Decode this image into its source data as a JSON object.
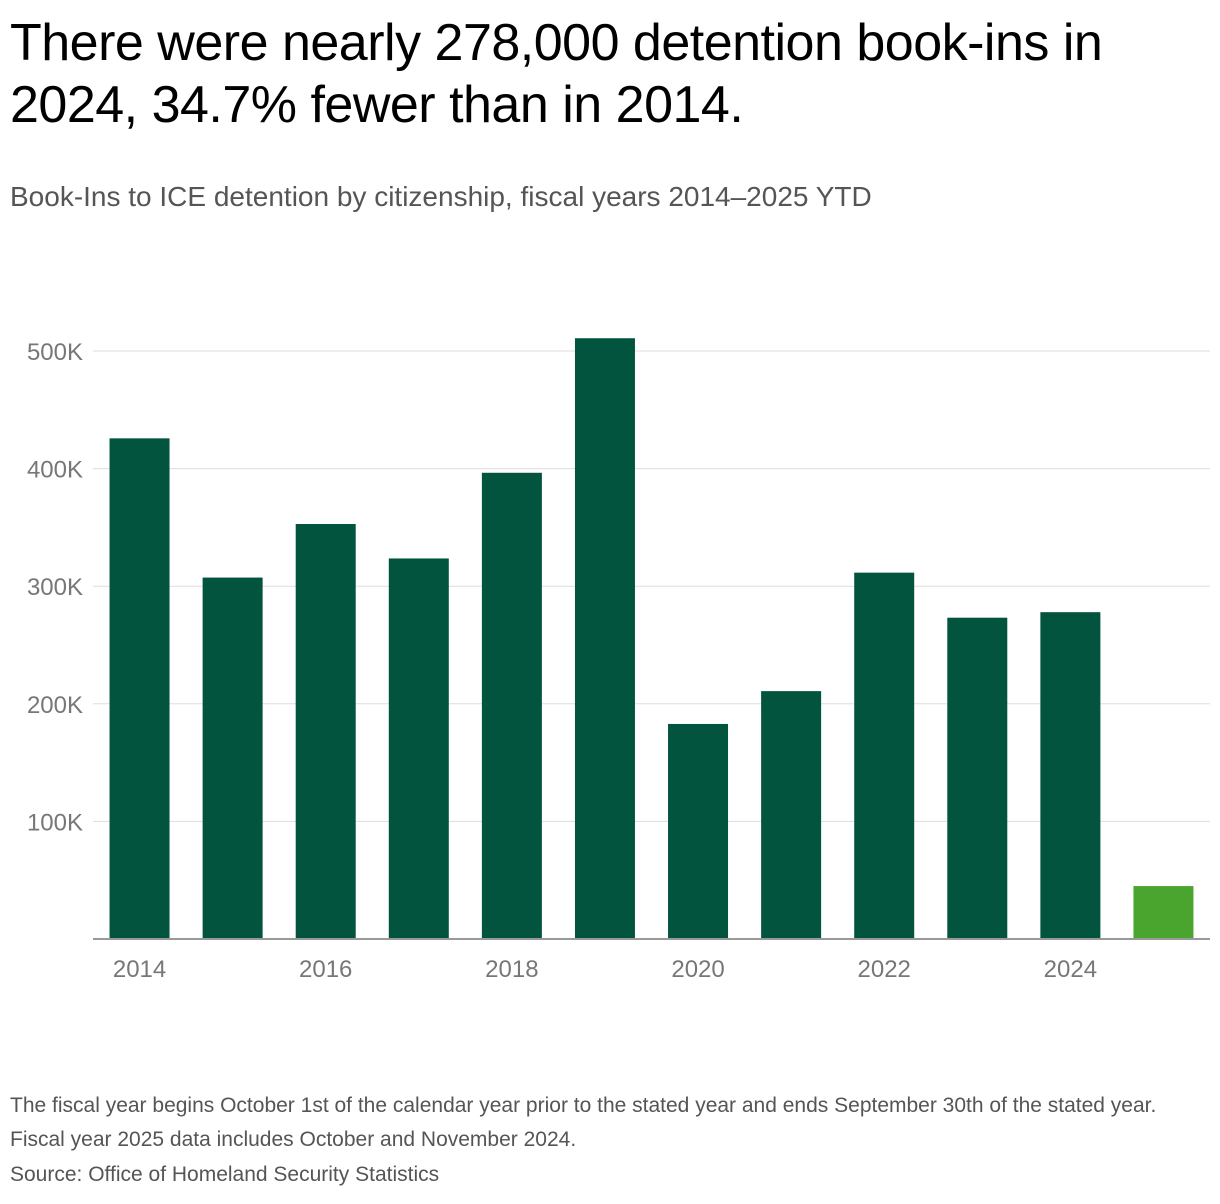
{
  "title": "There were nearly 278,000 detention book-ins in 2024, 34.7% fewer than in 2014.",
  "subtitle": "Book-Ins to ICE detention by citizenship, fiscal years 2014–2025 YTD",
  "footnote": "The fiscal year begins October 1st of the calendar year prior to the stated year and ends September 30th of the stated year. Fiscal year 2025 data includes October and November 2024.",
  "source": "Source: Office of Homeland Security Statistics",
  "chart_data": {
    "type": "bar",
    "categories": [
      "2014",
      "2015",
      "2016",
      "2017",
      "2018",
      "2019",
      "2020",
      "2021",
      "2022",
      "2023",
      "2024",
      "2025"
    ],
    "values": [
      425728,
      307342,
      352882,
      323591,
      396448,
      510854,
      182869,
      210773,
      311530,
      273220,
      277913,
      45000
    ],
    "x_tick_labels": [
      "2014",
      "2016",
      "2018",
      "2020",
      "2022",
      "2024"
    ],
    "y_ticks": [
      100000,
      200000,
      300000,
      400000,
      500000
    ],
    "y_tick_labels": [
      "100K",
      "200K",
      "300K",
      "400K",
      "500K"
    ],
    "ylim": [
      0,
      520000
    ],
    "grid": true,
    "bar_color": "#02543f",
    "highlight_color": "#4aa52e",
    "highlight_index": 11
  }
}
